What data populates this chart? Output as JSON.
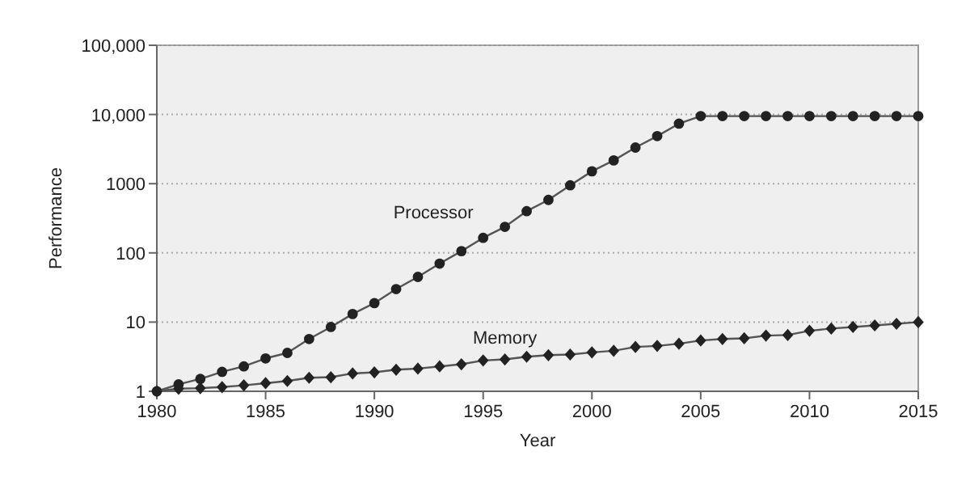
{
  "chart_data": {
    "type": "line",
    "xlabel": "Year",
    "ylabel": "Performance",
    "log": true,
    "grid": "y",
    "legend": false,
    "x": [
      1980,
      1981,
      1982,
      1983,
      1984,
      1985,
      1986,
      1987,
      1988,
      1989,
      1990,
      1991,
      1992,
      1993,
      1994,
      1995,
      1996,
      1997,
      1998,
      1999,
      2000,
      2001,
      2002,
      2003,
      2004,
      2005,
      2006,
      2007,
      2008,
      2009,
      2010,
      2011,
      2012,
      2013,
      2014,
      2015
    ],
    "xlim": [
      1980,
      2015
    ],
    "xticks": [
      1980,
      1985,
      1990,
      1995,
      2000,
      2005,
      2010,
      2015
    ],
    "ylim": [
      1,
      100000
    ],
    "yticks": [
      1,
      10,
      100,
      1000,
      {
        "value": 10000,
        "label": "10,000"
      },
      {
        "value": 100000,
        "label": "100,000"
      }
    ],
    "series": [
      {
        "name": "Processor",
        "color": "#222222",
        "marker": "circle",
        "values": [
          1,
          1.26,
          1.51,
          1.91,
          2.29,
          2.99,
          3.59,
          5.7,
          8.5,
          13.1,
          18.8,
          30,
          45,
          70,
          106,
          165,
          238,
          401,
          583,
          948,
          1510,
          2170,
          3330,
          4870,
          7370,
          9480,
          9480,
          9480,
          9480,
          9480,
          9480,
          9480,
          9480,
          9480,
          9480,
          9480
        ]
      },
      {
        "name": "Memory",
        "color": "#222222",
        "marker": "diamond",
        "values": [
          1,
          1.09,
          1.11,
          1.15,
          1.22,
          1.31,
          1.41,
          1.57,
          1.6,
          1.81,
          1.88,
          2.05,
          2.13,
          2.29,
          2.46,
          2.79,
          2.89,
          3.16,
          3.33,
          3.4,
          3.65,
          3.85,
          4.37,
          4.53,
          4.87,
          5.42,
          5.7,
          5.83,
          6.38,
          6.5,
          7.5,
          8.06,
          8.5,
          8.95,
          9.45,
          10
        ]
      }
    ]
  }
}
